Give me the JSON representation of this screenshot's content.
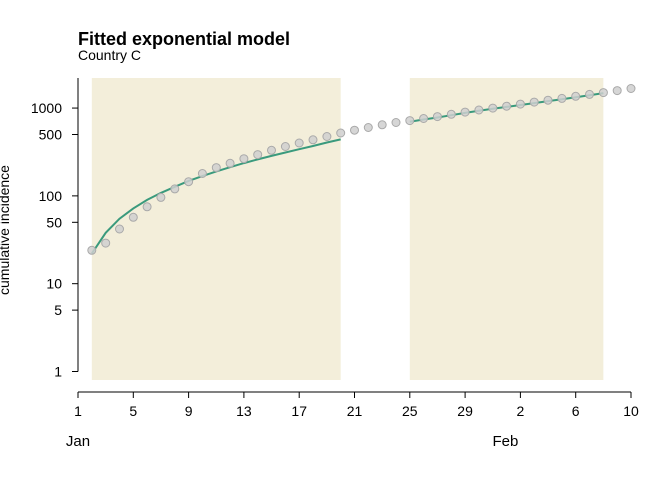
{
  "chart_data": {
    "type": "scatter",
    "title": "Fitted exponential model",
    "subtitle": "Country C",
    "xlabel": "",
    "ylabel": "cumulative incidence",
    "y_scale": "log",
    "ylim": [
      0.8,
      2200
    ],
    "y_ticks": [
      1,
      5,
      10,
      50,
      100,
      500,
      1000
    ],
    "xlim": [
      "2020-01-01",
      "2020-02-10"
    ],
    "x_tick_labels": [
      "1",
      "5",
      "9",
      "13",
      "17",
      "21",
      "25",
      "29",
      "2",
      "6",
      "10"
    ],
    "x_month_labels": [
      "Jan",
      "Feb"
    ],
    "shaded_periods": [
      {
        "start": "2020-01-02",
        "end": "2020-01-20"
      },
      {
        "start": "2020-01-25",
        "end": "2020-02-08"
      }
    ],
    "series": [
      {
        "kind": "points",
        "color": "#b3b3b3",
        "x": [
          "2020-01-02",
          "2020-01-03",
          "2020-01-04",
          "2020-01-05",
          "2020-01-06",
          "2020-01-07",
          "2020-01-08",
          "2020-01-09",
          "2020-01-10",
          "2020-01-11",
          "2020-01-12",
          "2020-01-13",
          "2020-01-14",
          "2020-01-15",
          "2020-01-16",
          "2020-01-17",
          "2020-01-18",
          "2020-01-19",
          "2020-01-20",
          "2020-01-21",
          "2020-01-22",
          "2020-01-23",
          "2020-01-24",
          "2020-01-25",
          "2020-01-26",
          "2020-01-27",
          "2020-01-28",
          "2020-01-29",
          "2020-01-30",
          "2020-01-31",
          "2020-02-01",
          "2020-02-02",
          "2020-02-03",
          "2020-02-04",
          "2020-02-05",
          "2020-02-06",
          "2020-02-07",
          "2020-02-08",
          "2020-02-09",
          "2020-02-10"
        ],
        "y": [
          24,
          29,
          42,
          57,
          75,
          96,
          120,
          145,
          180,
          210,
          235,
          265,
          295,
          330,
          365,
          400,
          435,
          475,
          520,
          560,
          600,
          645,
          685,
          720,
          760,
          800,
          850,
          900,
          950,
          1000,
          1050,
          1110,
          1170,
          1230,
          1290,
          1360,
          1430,
          1500,
          1580,
          1670
        ]
      },
      {
        "kind": "fitted-line",
        "color": "#3a9a7d",
        "segments": [
          {
            "x": [
              "2020-01-02",
              "2020-01-03",
              "2020-01-04",
              "2020-01-05",
              "2020-01-06",
              "2020-01-07",
              "2020-01-08",
              "2020-01-09",
              "2020-01-10",
              "2020-01-11",
              "2020-01-12",
              "2020-01-13",
              "2020-01-14",
              "2020-01-15",
              "2020-01-16",
              "2020-01-17",
              "2020-01-18",
              "2020-01-19",
              "2020-01-20"
            ],
            "y": [
              22,
              38,
              55,
              72,
              90,
              108,
              127,
              148,
              168,
              190,
              212,
              236,
              260,
              285,
              312,
              340,
              370,
              405,
              440
            ]
          },
          {
            "x": [
              "2020-01-25",
              "2020-01-26",
              "2020-01-27",
              "2020-01-28",
              "2020-01-29",
              "2020-01-30",
              "2020-01-31",
              "2020-02-01",
              "2020-02-02",
              "2020-02-03",
              "2020-02-04",
              "2020-02-05",
              "2020-02-06",
              "2020-02-07",
              "2020-02-08"
            ],
            "y": [
              700,
              740,
              780,
              830,
              880,
              930,
              980,
              1030,
              1085,
              1140,
              1200,
              1260,
              1330,
              1400,
              1480
            ]
          }
        ]
      }
    ],
    "grid": false,
    "legend": "none"
  },
  "colors": {
    "shade": "#f3eeda",
    "point_fill": "#cfcfcf",
    "point_stroke": "#a9a9a9",
    "line": "#3a9a7d"
  }
}
